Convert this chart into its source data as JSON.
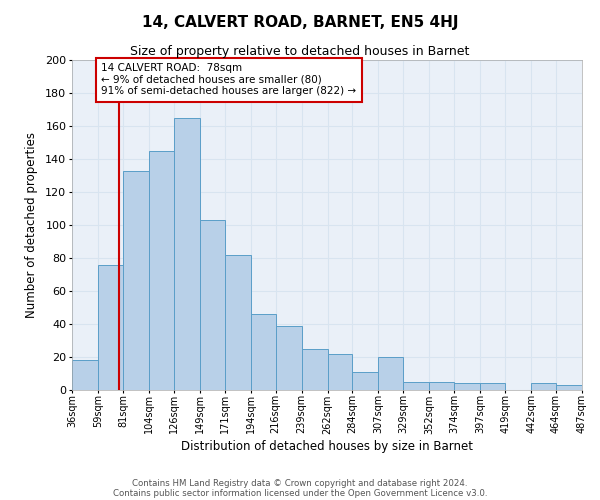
{
  "title": "14, CALVERT ROAD, BARNET, EN5 4HJ",
  "subtitle": "Size of property relative to detached houses in Barnet",
  "xlabel": "Distribution of detached houses by size in Barnet",
  "ylabel": "Number of detached properties",
  "bar_color": "#b8d0e8",
  "bar_edgecolor": "#5a9ec8",
  "background_color": "#eaf0f8",
  "grid_color": "#d8e4f0",
  "bin_edges": [
    36,
    59,
    81,
    104,
    126,
    149,
    171,
    194,
    216,
    239,
    262,
    284,
    307,
    329,
    352,
    374,
    397,
    419,
    442,
    464,
    487
  ],
  "bar_heights": [
    18,
    76,
    133,
    145,
    165,
    103,
    82,
    46,
    39,
    25,
    22,
    11,
    20,
    5,
    5,
    4,
    4,
    0,
    4,
    3
  ],
  "ylim": [
    0,
    200
  ],
  "yticks": [
    0,
    20,
    40,
    60,
    80,
    100,
    120,
    140,
    160,
    180,
    200
  ],
  "property_size": 78,
  "red_line_color": "#cc0000",
  "annotation_title": "14 CALVERT ROAD:  78sqm",
  "annotation_line1": "← 9% of detached houses are smaller (80)",
  "annotation_line2": "91% of semi-detached houses are larger (822) →",
  "annotation_box_edgecolor": "#cc0000",
  "annotation_box_facecolor": "#ffffff",
  "footer_line1": "Contains HM Land Registry data © Crown copyright and database right 2024.",
  "footer_line2": "Contains public sector information licensed under the Open Government Licence v3.0."
}
